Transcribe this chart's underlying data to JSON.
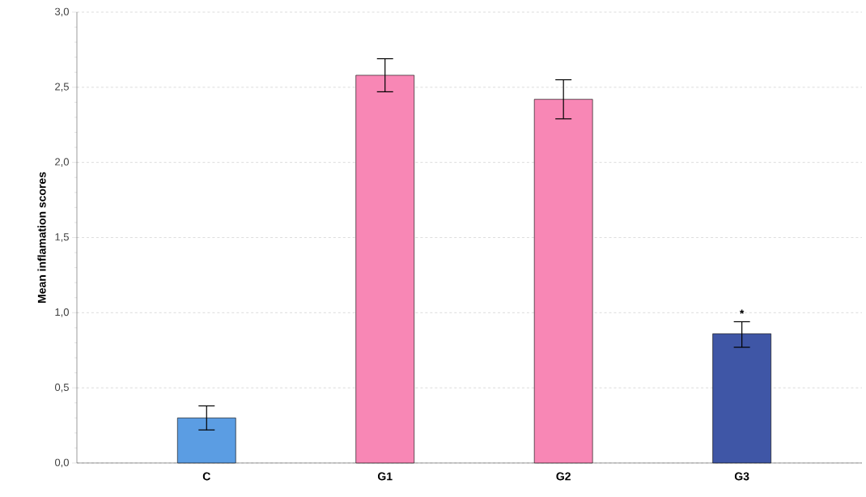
{
  "chart_data": {
    "type": "bar",
    "ylabel": "Mean inflamation scores",
    "categories": [
      "C",
      "G1",
      "G2",
      "G3"
    ],
    "values": [
      0.3,
      2.58,
      2.42,
      0.86
    ],
    "colors": [
      "#5b9de3",
      "#f887b5",
      "#f887b5",
      "#3f56a6"
    ],
    "errors": [
      [
        0.22,
        0.38
      ],
      [
        2.47,
        2.69
      ],
      [
        2.29,
        2.55
      ],
      [
        0.77,
        0.94
      ]
    ],
    "ylim": [
      0,
      3.0
    ],
    "yticks": [
      {
        "value": 0,
        "label": "0,0"
      },
      {
        "value": 0.5,
        "label": "0,5"
      },
      {
        "value": 1.0,
        "label": "1,0"
      },
      {
        "value": 1.5,
        "label": "1,5"
      },
      {
        "value": 2.0,
        "label": "2,0"
      },
      {
        "value": 2.5,
        "label": "2,5"
      },
      {
        "value": 3.0,
        "label": "3,0"
      }
    ],
    "grid": "y",
    "annotations": [
      {
        "text": "*",
        "x": "G3",
        "y": 0.95
      }
    ]
  }
}
